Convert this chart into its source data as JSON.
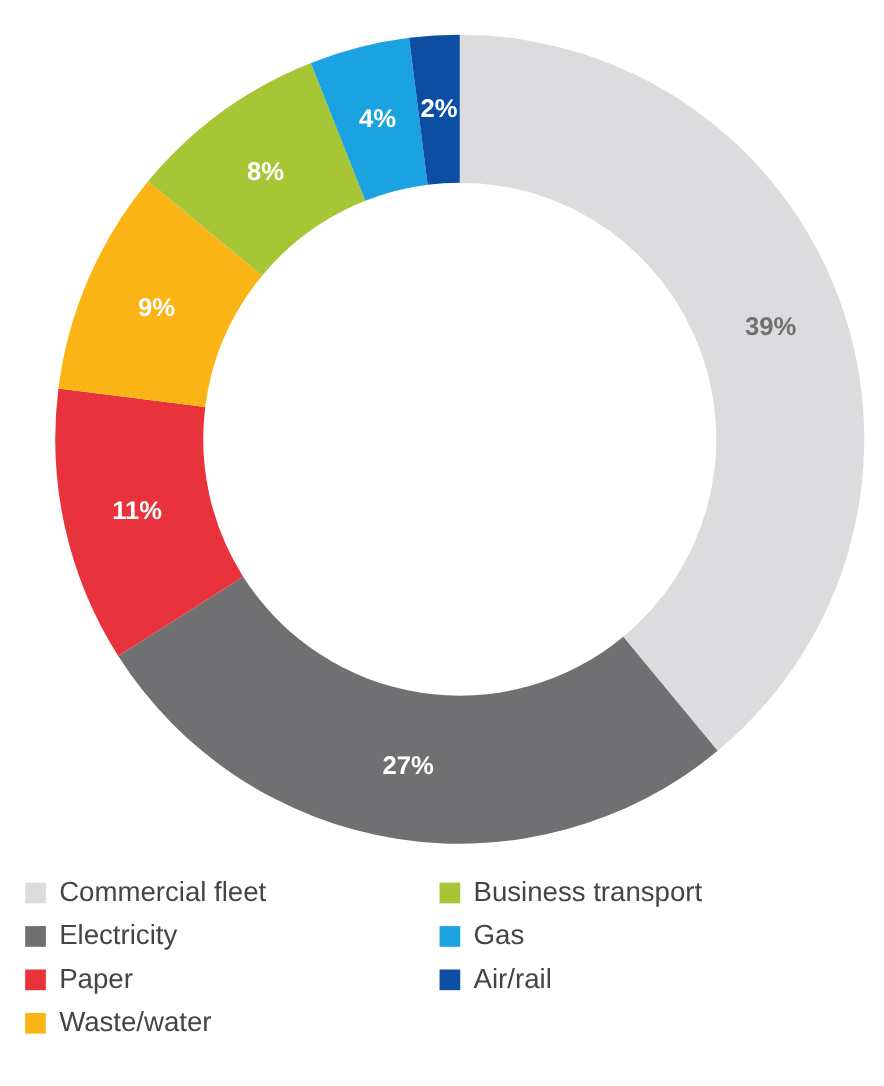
{
  "chart_data": {
    "type": "donut",
    "categories": [
      "Commercial fleet",
      "Electricity",
      "Paper",
      "Waste/water",
      "Business transport",
      "Gas",
      "Air/rail"
    ],
    "values": [
      39,
      27,
      11,
      9,
      8,
      4,
      2
    ],
    "colors": [
      "#dcdcde",
      "#707072",
      "#e8333c",
      "#fbb416",
      "#a6c636",
      "#1aa3e0",
      "#0c4ea2"
    ],
    "value_labels": [
      "39%",
      "27%",
      "11%",
      "9%",
      "8%",
      "4%",
      "2%"
    ],
    "legend": "bottom"
  }
}
